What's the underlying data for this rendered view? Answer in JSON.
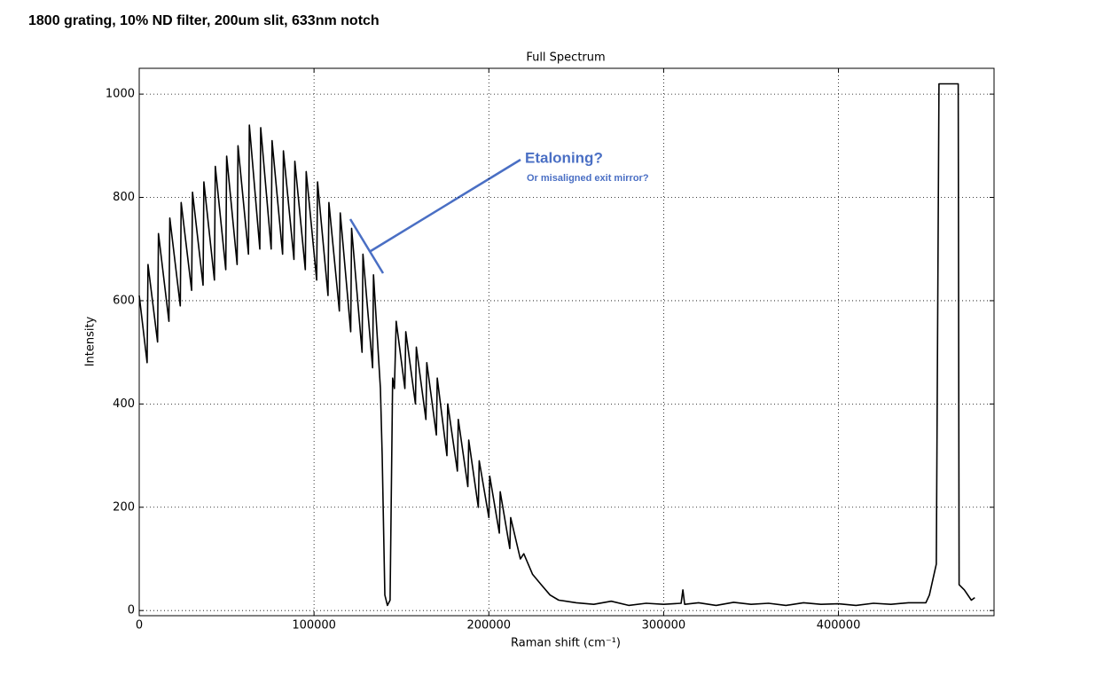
{
  "chart_data": {
    "type": "line",
    "page_title": "1800 grating, 10% ND filter, 200um slit, 633nm notch",
    "title": "Full Spectrum",
    "x_label": "Raman shift (cm⁻¹)",
    "y_label": "Intensity",
    "annotations": [
      "Etaloning?",
      "Or misaligned exit mirror?"
    ],
    "color": "#000000",
    "grid": true,
    "xlim": [
      0,
      489000
    ],
    "ylim": [
      -10,
      1050
    ],
    "xticks": [
      0,
      100000,
      200000,
      300000,
      400000
    ],
    "yticks": [
      0,
      200,
      400,
      600,
      800,
      1000
    ],
    "x": [
      0,
      4500,
      5000,
      10500,
      11000,
      17000,
      17500,
      23500,
      24000,
      30000,
      30500,
      36500,
      37000,
      43000,
      43500,
      49500,
      50000,
      56000,
      56500,
      62500,
      63000,
      69000,
      69500,
      75500,
      76000,
      82000,
      82500,
      88500,
      89000,
      95000,
      95500,
      101500,
      102000,
      108000,
      108500,
      114500,
      115000,
      121000,
      121500,
      127500,
      128000,
      133500,
      134000,
      138000,
      139000,
      140500,
      142000,
      143500,
      145000,
      146000,
      147000,
      152000,
      152500,
      158000,
      158500,
      164000,
      164500,
      170000,
      170500,
      176000,
      176500,
      182000,
      182500,
      188000,
      188500,
      194000,
      194500,
      200000,
      200500,
      206000,
      206500,
      212000,
      212500,
      218000,
      220000,
      225000,
      230000,
      235000,
      240000,
      250000,
      260000,
      270000,
      280000,
      290000,
      300000,
      310000,
      311000,
      312000,
      320000,
      330000,
      340000,
      350000,
      360000,
      370000,
      380000,
      390000,
      400000,
      410000,
      420000,
      430000,
      440000,
      450000,
      452000,
      456000,
      457500,
      468500,
      469000,
      472000,
      476000,
      478000
    ],
    "values": [
      610,
      480,
      670,
      520,
      730,
      560,
      760,
      590,
      790,
      620,
      810,
      630,
      830,
      640,
      860,
      660,
      880,
      670,
      900,
      690,
      940,
      700,
      935,
      700,
      910,
      690,
      890,
      680,
      870,
      660,
      850,
      640,
      830,
      610,
      790,
      580,
      770,
      540,
      740,
      500,
      690,
      470,
      650,
      430,
      300,
      30,
      10,
      20,
      450,
      430,
      560,
      430,
      540,
      400,
      510,
      370,
      480,
      340,
      450,
      300,
      400,
      270,
      370,
      240,
      330,
      200,
      290,
      180,
      260,
      150,
      230,
      120,
      180,
      100,
      110,
      70,
      50,
      30,
      20,
      15,
      12,
      18,
      10,
      14,
      12,
      14,
      40,
      12,
      15,
      10,
      16,
      12,
      14,
      10,
      15,
      12,
      13,
      10,
      14,
      12,
      15,
      15,
      30,
      90,
      1020,
      1020,
      50,
      40,
      20,
      25
    ]
  }
}
